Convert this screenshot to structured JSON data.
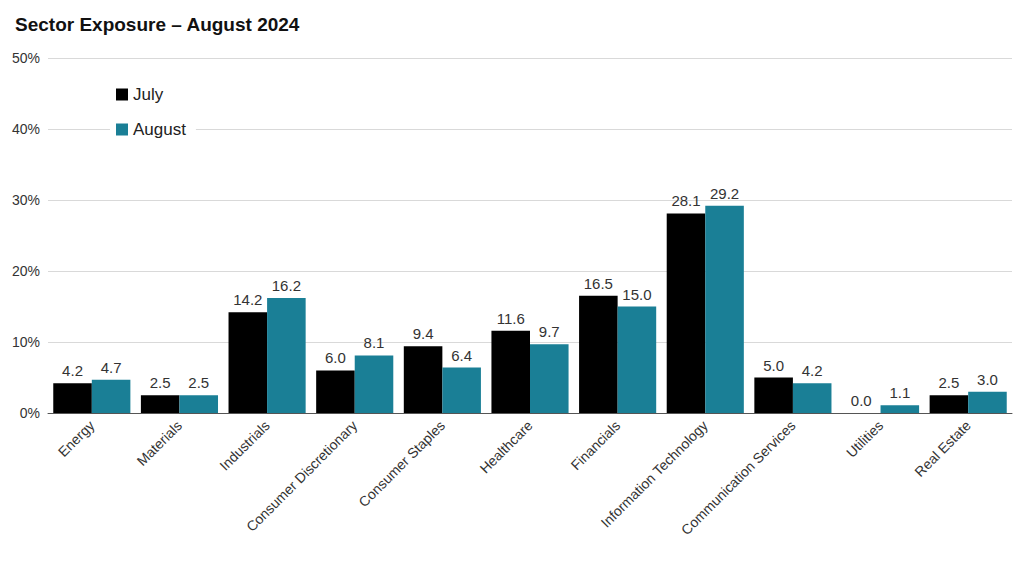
{
  "chart_data": {
    "type": "bar",
    "title": "Sector Exposure – August 2024",
    "categories": [
      "Energy",
      "Materials",
      "Industrials",
      "Consumer Discretionary",
      "Consumer Staples",
      "Healthcare",
      "Financials",
      "Information Technology",
      "Communication Services",
      "Utilities",
      "Real Estate"
    ],
    "series": [
      {
        "name": "July",
        "color": "#000000",
        "values": [
          4.2,
          2.5,
          14.2,
          6.0,
          9.4,
          11.6,
          16.5,
          28.1,
          5.0,
          0.0,
          2.5
        ],
        "value_labels": [
          "4.2",
          "2.5",
          "14.2",
          "6.0",
          "9.4",
          "11.6",
          "16.5",
          "28.1",
          "5.0",
          "0.0",
          "2.5"
        ]
      },
      {
        "name": "August",
        "color": "#1a7f96",
        "values": [
          4.7,
          2.5,
          16.2,
          8.1,
          6.4,
          9.7,
          15.0,
          29.2,
          4.2,
          1.1,
          3.0
        ],
        "value_labels": [
          "4.7",
          "2.5",
          "16.2",
          "8.1",
          "6.4",
          "9.7",
          "15.0",
          "29.2",
          "4.2",
          "1.1",
          "3.0"
        ]
      }
    ],
    "ylim": [
      0,
      50
    ],
    "yticks": [
      {
        "value": 0,
        "label": "0%"
      },
      {
        "value": 10,
        "label": "10%"
      },
      {
        "value": 20,
        "label": "20%"
      },
      {
        "value": 30,
        "label": "30%"
      },
      {
        "value": 40,
        "label": "40%"
      },
      {
        "value": 50,
        "label": "50%"
      }
    ],
    "grid": true,
    "legend": "top-left",
    "data_labels": true
  }
}
